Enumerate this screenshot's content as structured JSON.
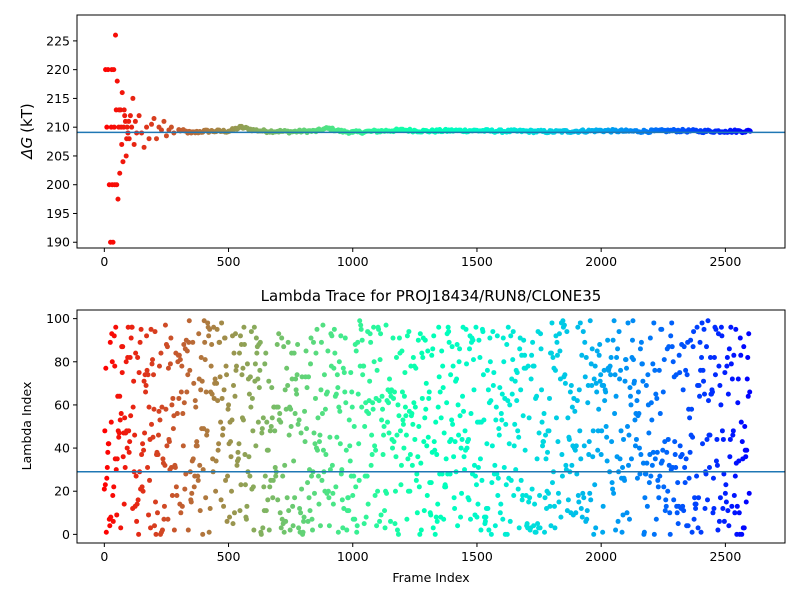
{
  "chart_data": [
    {
      "type": "scatter",
      "title": "",
      "xlabel": "",
      "ylabel": "ΔG (kT)",
      "ylabel_symbol": "ΔG",
      "ylabel_unit": "(kT)",
      "xlim": [
        -110,
        2740
      ],
      "ylim": [
        189,
        229.5
      ],
      "xticks": [
        0,
        500,
        1000,
        1500,
        2000,
        2500
      ],
      "yticks": [
        190,
        195,
        200,
        205,
        210,
        215,
        220,
        225
      ],
      "hline": 209.1,
      "grid": false,
      "n_points": 2600,
      "colormap": "rainbow",
      "line_color": "#1f77b4",
      "series": [
        {
          "x": [
            5,
            10,
            15,
            20,
            25,
            28,
            30,
            32,
            35,
            38,
            40,
            42,
            45,
            48,
            50,
            52,
            55,
            58,
            60,
            62,
            65,
            68,
            70,
            72,
            75,
            78,
            80,
            82,
            85,
            88,
            90,
            92,
            95,
            98,
            100,
            105,
            110,
            115,
            120,
            125,
            130,
            140,
            150,
            160,
            170,
            180,
            190,
            200,
            210,
            220,
            230,
            240,
            250,
            260,
            270,
            280,
            300,
            350,
            400,
            450,
            500,
            550,
            600,
            650,
            700,
            750,
            800,
            850,
            900,
            950,
            1000,
            1100,
            1200,
            1300,
            1400,
            1500,
            1600,
            1700,
            1800,
            1900,
            2000,
            2100,
            2200,
            2300,
            2400,
            2500,
            2600
          ],
          "y": [
            220,
            210,
            220,
            200,
            190,
            210,
            220,
            200,
            190,
            220,
            210,
            200,
            226,
            213,
            200,
            218,
            197.5,
            210,
            213,
            202,
            213,
            210,
            207,
            216,
            204,
            210,
            213,
            212,
            211,
            205,
            208,
            210,
            209,
            211,
            208,
            212,
            210,
            215,
            207,
            211,
            209,
            212,
            209,
            206.5,
            210,
            208,
            210.5,
            211.5,
            208,
            210,
            209.5,
            211,
            208.5,
            209.5,
            210,
            209,
            209.5,
            209,
            209.3,
            209.3,
            209.3,
            210,
            209.5,
            209.3,
            209.3,
            209.2,
            209.3,
            209.3,
            209.8,
            209.3,
            209.1,
            209.3,
            209.5,
            209.3,
            209.4,
            209.4,
            209.3,
            209.3,
            209.2,
            209.3,
            209.4,
            209.3,
            209.3,
            209.4,
            209.3,
            209.3,
            209.3
          ]
        }
      ]
    },
    {
      "type": "scatter",
      "title": "Lambda Trace for PROJ18434/RUN8/CLONE35",
      "xlabel": "Frame Index",
      "ylabel": "Lambda Index",
      "xlim": [
        -110,
        2740
      ],
      "ylim": [
        -4,
        104
      ],
      "xticks": [
        0,
        500,
        1000,
        1500,
        2000,
        2500
      ],
      "yticks": [
        0,
        20,
        40,
        60,
        80,
        100
      ],
      "hline": 29,
      "grid": false,
      "n_points": 2600,
      "value_range": [
        0,
        99
      ],
      "colormap": "rainbow",
      "line_color": "#1f77b4"
    }
  ]
}
